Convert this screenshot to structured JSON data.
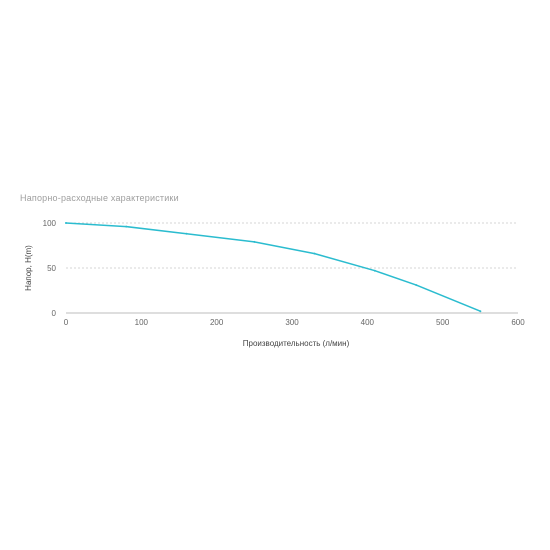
{
  "chart_data": {
    "type": "line",
    "title": "Напорно-расходные характеристики",
    "xlabel": "Производительность (л/мин)",
    "ylabel": "Напор, H(m)",
    "xlim": [
      0,
      600
    ],
    "ylim": [
      0,
      100
    ],
    "x_ticks": [
      "0",
      "100",
      "200",
      "300",
      "400",
      "500",
      "600"
    ],
    "y_ticks": [
      "0",
      "50",
      "100"
    ],
    "grid": true,
    "legend": "none",
    "color": "#2bbccf",
    "series": [
      {
        "x": [
          0,
          80,
          160,
          250,
          330,
          410,
          465,
          550
        ],
        "y": [
          100,
          96,
          88,
          79,
          66,
          47,
          31,
          2
        ]
      }
    ]
  }
}
